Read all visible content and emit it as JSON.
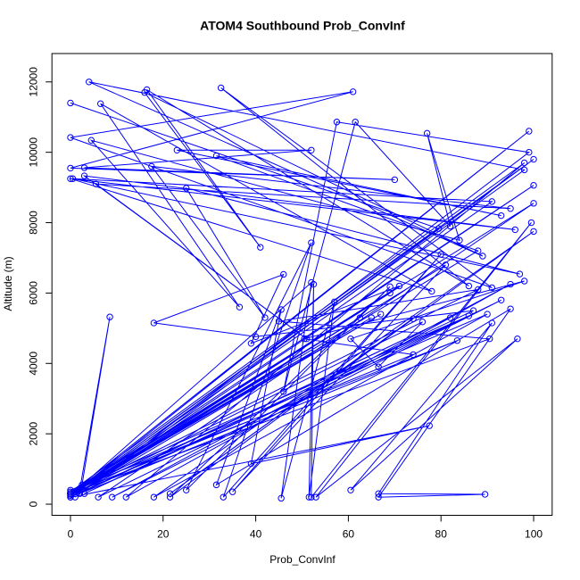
{
  "chart_data": {
    "type": "line",
    "title": "ATOM4 Southbound Prob_ConvInf",
    "x_label": "Prob_ConvInf",
    "y_label": "Altitude (m)",
    "color": "#0000ff",
    "markers": true,
    "xlim": [
      -4,
      104
    ],
    "ylim": [
      -316,
      12806
    ],
    "xticks": [
      0,
      20,
      40,
      60,
      80,
      100
    ],
    "yticks": [
      0,
      2000,
      4000,
      6000,
      8000,
      10000,
      12000
    ],
    "x": [
      0,
      79.5,
      0,
      99,
      0,
      98,
      4,
      89,
      16,
      41,
      16.5,
      86,
      32.5,
      91,
      0,
      61,
      0,
      70,
      3,
      52,
      23,
      93,
      31.5,
      88,
      0,
      100,
      1,
      99,
      57.5,
      46,
      61.5,
      82,
      77,
      84,
      4.5,
      36.5,
      6.5,
      78,
      0,
      96,
      3,
      51,
      5.5,
      95,
      17.5,
      42,
      25,
      97,
      0.5,
      91,
      0,
      100,
      2,
      8.5,
      2.5,
      100,
      6,
      93,
      9,
      95,
      12,
      98,
      0,
      90,
      18,
      100,
      21.5,
      74,
      21.5,
      69,
      25,
      52,
      33,
      80,
      35,
      81,
      0,
      52,
      45.5,
      57,
      51.5,
      52.5,
      52,
      99.5,
      53,
      96.5,
      60.5,
      91,
      66.5,
      89.5,
      66.5,
      95,
      31.5,
      45.5,
      39,
      77.5,
      0,
      62.5,
      0,
      65,
      1,
      67,
      0,
      82,
      2,
      83.5,
      0,
      86,
      3,
      87,
      40,
      18,
      46,
      39,
      71,
      0,
      69,
      0,
      76,
      66.5,
      60.5,
      98,
      50.5,
      74,
      0,
      90.5,
      45,
      88,
      0
    ],
    "values": [
      11400,
      7830,
      300,
      10600,
      250,
      9500,
      12000,
      7050,
      11700,
      7300,
      11780,
      6200,
      11830,
      6150,
      10420,
      11720,
      9550,
      9220,
      9560,
      10060,
      10060,
      8200,
      9900,
      7200,
      300,
      9800,
      200,
      10000,
      10860,
      3200,
      10860,
      7900,
      10540,
      7500,
      10340,
      5600,
      11380,
      6050,
      9250,
      7800,
      9330,
      4700,
      9100,
      8400,
      9600,
      5300,
      8980,
      6540,
      9250,
      8600,
      300,
      9060,
      400,
      5320,
      550,
      8550,
      200,
      5800,
      200,
      6250,
      200,
      9700,
      350,
      5400,
      200,
      7750,
      300,
      5270,
      200,
      6180,
      400,
      7430,
      200,
      7100,
      350,
      6800,
      250,
      6300,
      170,
      5750,
      200,
      6250,
      200,
      8000,
      200,
      4700,
      400,
      5150,
      300,
      280,
      200,
      5550,
      550,
      5530,
      1150,
      2230,
      200,
      5300,
      300,
      5300,
      350,
      5400,
      200,
      5300,
      300,
      4650,
      400,
      5350,
      300,
      5500,
      4760,
      5150,
      6530,
      4570,
      6200,
      300,
      6000,
      250,
      5180,
      3900,
      4700,
      6340,
      4700,
      4250,
      300,
      4700,
      5200,
      6100,
      300
    ]
  }
}
